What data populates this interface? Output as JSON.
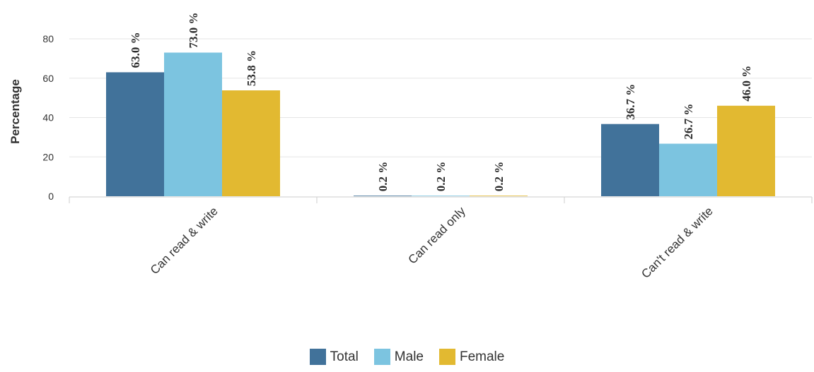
{
  "chart_data": {
    "type": "bar",
    "categories": [
      "Can read & write",
      "Can read only",
      "Can't read & write"
    ],
    "series": [
      {
        "name": "Total",
        "values": [
          63.0,
          0.2,
          36.7
        ],
        "color": "#41729a"
      },
      {
        "name": "Male",
        "values": [
          73.0,
          0.2,
          26.7
        ],
        "color": "#7cc4e0"
      },
      {
        "name": "Female",
        "values": [
          53.8,
          0.2,
          46.0
        ],
        "color": "#e2b931"
      }
    ],
    "data_labels": [
      [
        "63.0 %",
        "0.2 %",
        "36.7 %"
      ],
      [
        "73.0 %",
        "0.2 %",
        "26.7 %"
      ],
      [
        "53.8 %",
        "0.2 %",
        "46.0 %"
      ]
    ],
    "ylabel": "Percentage",
    "xlabel": "",
    "yticks": [
      "0",
      "20",
      "40",
      "60",
      "80"
    ],
    "ylim": [
      0,
      80
    ],
    "grid": true,
    "legend_position": "bottom"
  }
}
